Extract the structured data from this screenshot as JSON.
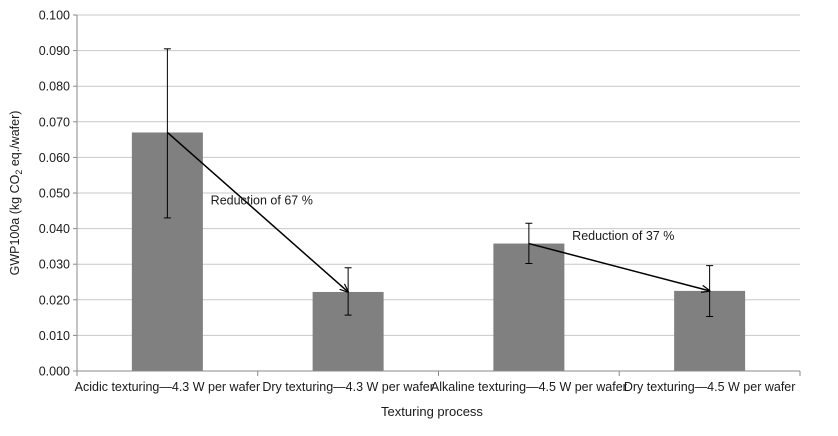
{
  "chart_data": {
    "type": "bar",
    "title": "",
    "xlabel": "Texturing process",
    "ylabel": {
      "prefix": "GWP100a (kg CO",
      "subscript": "2",
      "suffix": " eq./wafer)"
    },
    "ylim": [
      0,
      0.1
    ],
    "ytick_step": 0.01,
    "ytick_decimals": 3,
    "grid": true,
    "legend": "none",
    "categories": [
      "Acidic texturing—4.3 W per wafer",
      "Dry texturing—4.3 W per wafer",
      "Alkaline texturing—4.5 W per wafer",
      "Dry texturing—4.5 W per wafer"
    ],
    "values": [
      0.067,
      0.0222,
      0.0358,
      0.0225
    ],
    "error_low": [
      0.043,
      0.0157,
      0.0302,
      0.0153
    ],
    "error_high": [
      0.0905,
      0.029,
      0.0415,
      0.0296
    ],
    "colors": {
      "bar": "#808080",
      "grid": "#c8c8c8",
      "axis": "#8a8a8a",
      "text": "#1a1a1a",
      "arrow": "#000000"
    },
    "annotations": [
      {
        "text": "Reduction of 67 %",
        "from_index": 0,
        "to_index": 1,
        "label_value": 0.0445
      },
      {
        "text": "Reduction of 37 %",
        "from_index": 2,
        "to_index": 3,
        "label_value": 0.0345
      }
    ]
  }
}
